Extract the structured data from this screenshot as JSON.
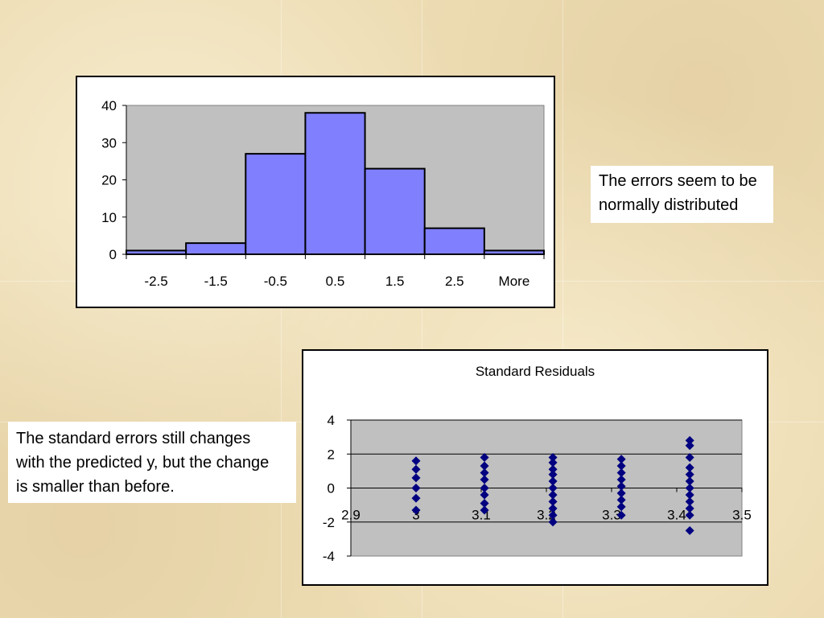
{
  "colors": {
    "plot_bg": "#c0c0c0",
    "bar_fill": "#8080ff",
    "marker": "#000080"
  },
  "notes": {
    "histogram": [
      "The errors seem to be",
      "normally distributed"
    ],
    "residuals": [
      "The standard errors still changes",
      "with the predicted y, but the change",
      "is smaller than before."
    ]
  },
  "chart_data": [
    {
      "type": "bar",
      "categories": [
        "-2.5",
        "-1.5",
        "-0.5",
        "0.5",
        "1.5",
        "2.5",
        "More"
      ],
      "values": [
        1,
        3,
        27,
        38,
        23,
        7,
        1
      ],
      "ylim": [
        0,
        40
      ],
      "yticks": [
        "0",
        "10",
        "20",
        "30",
        "40"
      ],
      "grid": false,
      "legend": "none"
    },
    {
      "type": "scatter",
      "title": "Standard Residuals",
      "xlim": [
        2.9,
        3.5
      ],
      "ylim": [
        -4,
        4
      ],
      "xticks": [
        "2.9",
        "3",
        "3.1",
        "3.2",
        "3.3",
        "3.4",
        "3.5"
      ],
      "yticks": [
        "4",
        "2",
        "0",
        "-2",
        "-4"
      ],
      "grid": true,
      "legend": "none",
      "points": [
        {
          "x": 3.0,
          "y": 1.6
        },
        {
          "x": 3.0,
          "y": 1.1
        },
        {
          "x": 3.0,
          "y": 0.6
        },
        {
          "x": 3.0,
          "y": 0.0
        },
        {
          "x": 3.0,
          "y": -0.6
        },
        {
          "x": 3.0,
          "y": -1.3
        },
        {
          "x": 3.105,
          "y": 1.8
        },
        {
          "x": 3.105,
          "y": 1.3
        },
        {
          "x": 3.105,
          "y": 0.9
        },
        {
          "x": 3.105,
          "y": 0.5
        },
        {
          "x": 3.105,
          "y": 0.0
        },
        {
          "x": 3.105,
          "y": -0.4
        },
        {
          "x": 3.105,
          "y": -0.9
        },
        {
          "x": 3.105,
          "y": -1.3
        },
        {
          "x": 3.21,
          "y": 1.8
        },
        {
          "x": 3.21,
          "y": 1.5
        },
        {
          "x": 3.21,
          "y": 1.1
        },
        {
          "x": 3.21,
          "y": 0.8
        },
        {
          "x": 3.21,
          "y": 0.4
        },
        {
          "x": 3.21,
          "y": 0.0
        },
        {
          "x": 3.21,
          "y": -0.4
        },
        {
          "x": 3.21,
          "y": -0.8
        },
        {
          "x": 3.21,
          "y": -1.2
        },
        {
          "x": 3.21,
          "y": -1.6
        },
        {
          "x": 3.21,
          "y": -2.0
        },
        {
          "x": 3.315,
          "y": 1.7
        },
        {
          "x": 3.315,
          "y": 1.3
        },
        {
          "x": 3.315,
          "y": 0.9
        },
        {
          "x": 3.315,
          "y": 0.5
        },
        {
          "x": 3.315,
          "y": 0.1
        },
        {
          "x": 3.315,
          "y": -0.3
        },
        {
          "x": 3.315,
          "y": -0.7
        },
        {
          "x": 3.315,
          "y": -1.1
        },
        {
          "x": 3.315,
          "y": -1.6
        },
        {
          "x": 3.42,
          "y": 2.8
        },
        {
          "x": 3.42,
          "y": 2.5
        },
        {
          "x": 3.42,
          "y": 1.8
        },
        {
          "x": 3.42,
          "y": 1.2
        },
        {
          "x": 3.42,
          "y": 0.8
        },
        {
          "x": 3.42,
          "y": 0.4
        },
        {
          "x": 3.42,
          "y": 0.0
        },
        {
          "x": 3.42,
          "y": -0.4
        },
        {
          "x": 3.42,
          "y": -0.8
        },
        {
          "x": 3.42,
          "y": -1.2
        },
        {
          "x": 3.42,
          "y": -1.6
        },
        {
          "x": 3.42,
          "y": -2.5
        }
      ]
    }
  ]
}
